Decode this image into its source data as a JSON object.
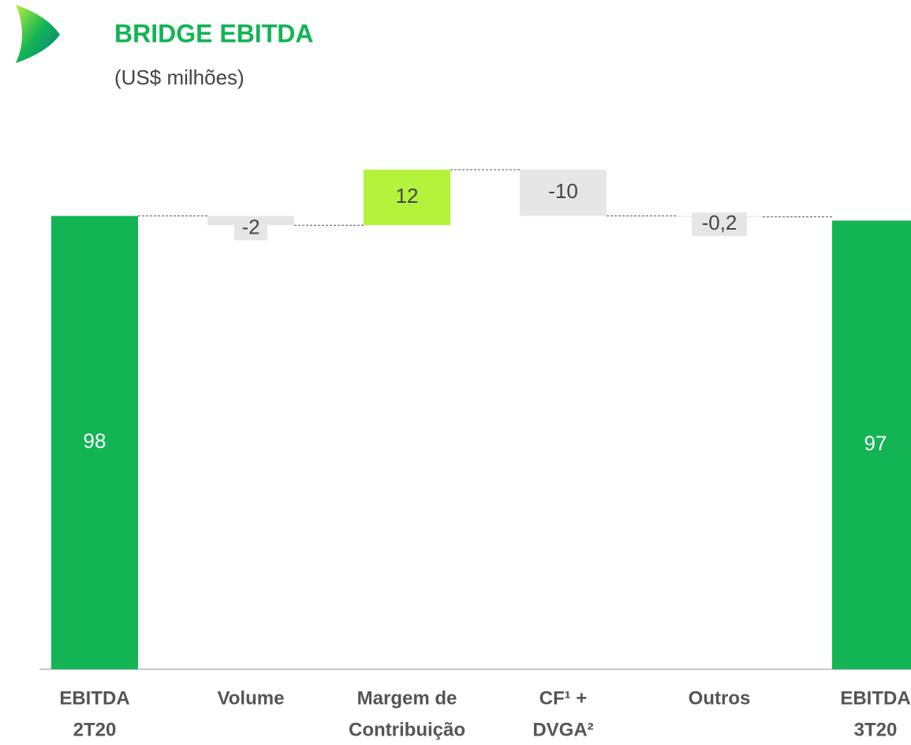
{
  "chart_data": {
    "type": "waterfall",
    "title": "BRIDGE EBITDA",
    "subtitle": "(US$ milhões)",
    "categories": [
      [
        "EBITDA",
        "2T20"
      ],
      [
        "Volume"
      ],
      [
        "Margem de",
        "Contribuição"
      ],
      [
        "CF¹ +",
        "DVGA²"
      ],
      [
        "Outros"
      ],
      [
        "EBITDA",
        "3T20"
      ]
    ],
    "values": [
      98,
      -2,
      12,
      -10,
      -0.2,
      97
    ],
    "value_labels": [
      "98",
      "-2",
      "12",
      "-10",
      "-0,2",
      "97"
    ],
    "measure": [
      "total",
      "relative",
      "relative",
      "relative",
      "relative",
      "total"
    ],
    "colors": {
      "total": "#12b454",
      "increase": "#b5f23b",
      "decrease": "#e6e6e6"
    }
  }
}
